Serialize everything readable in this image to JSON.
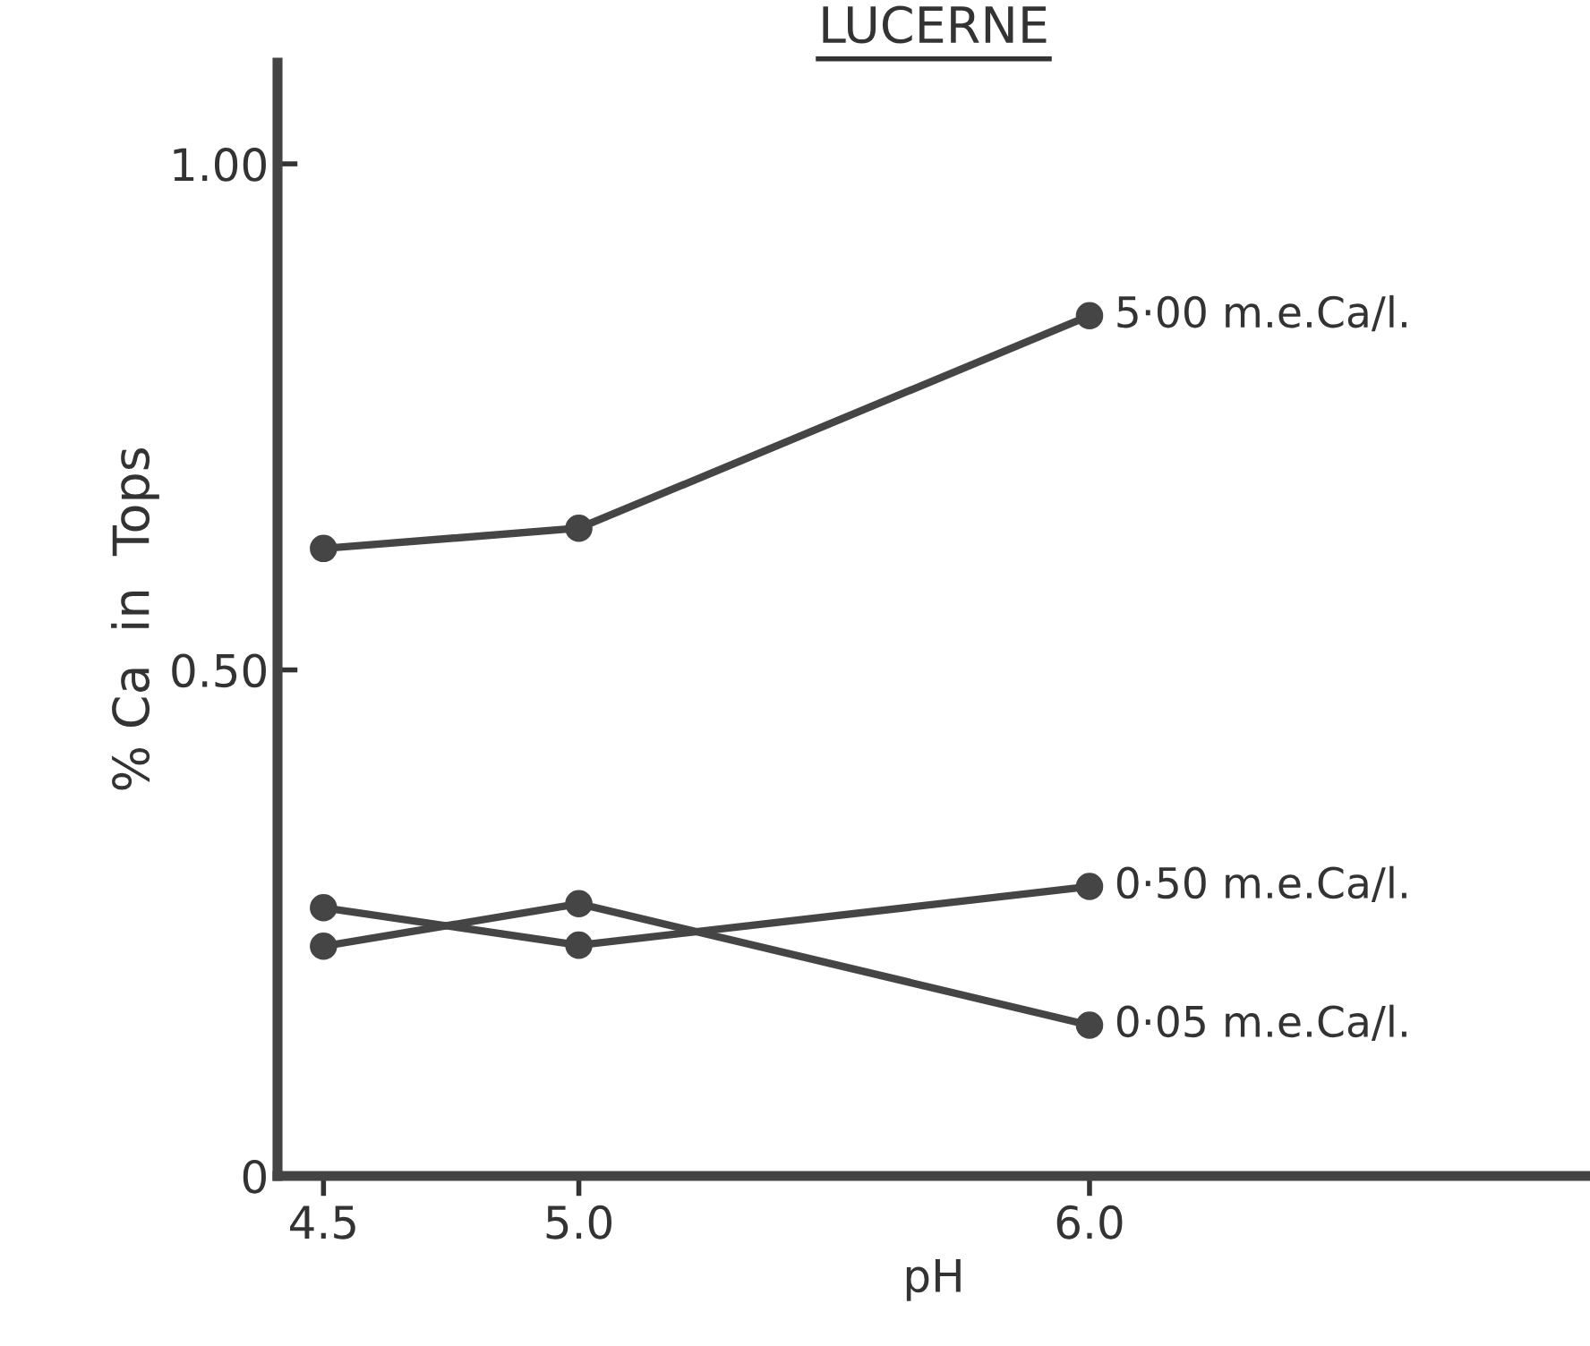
{
  "chart_data": {
    "type": "line",
    "title": "LUCERNE",
    "xlabel": "pH",
    "ylabel": "% Ca  in  Tops",
    "x": [
      4.5,
      5.0,
      6.0
    ],
    "series": [
      {
        "name": "5·00 m.e.Ca/l.",
        "color": "#454545",
        "values": [
          0.62,
          0.64,
          0.85
        ]
      },
      {
        "name": "0·50 m.e.Ca/l.",
        "color": "#454545",
        "values": [
          0.265,
          0.228,
          0.286
        ]
      },
      {
        "name": "0·05 m.e.Ca/l.",
        "color": "#454545",
        "values": [
          0.227,
          0.269,
          0.149
        ]
      }
    ],
    "xlim": [
      4.41,
      6.98
    ],
    "ylim": [
      0,
      1.1
    ],
    "xticks": [
      4.5,
      {
        "value": 5.0,
        "label": "5.0"
      },
      {
        "value": 6.0,
        "label": "6.0"
      }
    ],
    "yticks": [
      0,
      {
        "value": 0.5,
        "label": "0.50"
      },
      {
        "value": 1.0,
        "label": "1.00"
      }
    ],
    "grid": false,
    "legend": false,
    "marker": "circle",
    "line_style": "solid"
  }
}
